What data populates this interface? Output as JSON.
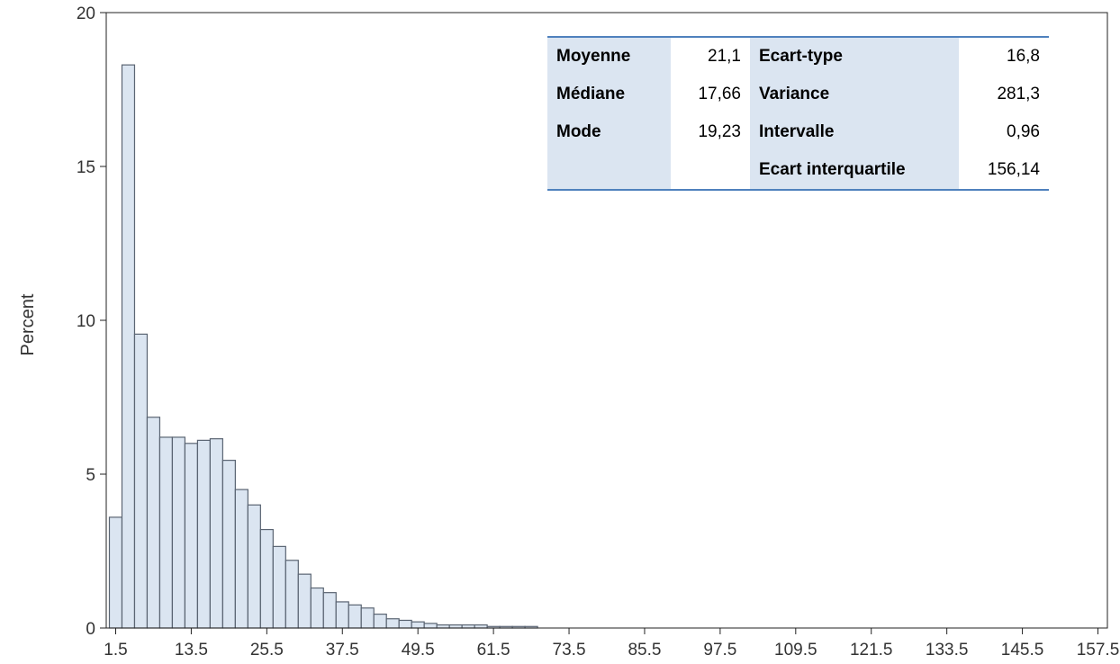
{
  "chart_data": {
    "type": "bar",
    "ylabel": "Percent",
    "ylim": [
      0,
      20
    ],
    "yticks": [
      "0",
      "5",
      "10",
      "15",
      "20"
    ],
    "xticks": [
      "1.5",
      "13.5",
      "25.5",
      "37.5",
      "49.5",
      "61.5",
      "73.5",
      "85.5",
      "97.5",
      "109.5",
      "121.5",
      "133.5",
      "145.5",
      "157.5"
    ],
    "xlim": [
      0,
      159
    ],
    "bin_width": 2,
    "categories": [
      1.5,
      3.5,
      5.5,
      7.5,
      9.5,
      11.5,
      13.5,
      15.5,
      17.5,
      19.5,
      21.5,
      23.5,
      25.5,
      27.5,
      29.5,
      31.5,
      33.5,
      35.5,
      37.5,
      39.5,
      41.5,
      43.5,
      45.5,
      47.5,
      49.5,
      51.5,
      53.5,
      55.5,
      57.5,
      59.5,
      61.5,
      63.5,
      65.5,
      67.5
    ],
    "values": [
      3.6,
      18.3,
      9.55,
      6.85,
      6.2,
      6.2,
      6.0,
      6.1,
      6.15,
      5.45,
      4.5,
      4.0,
      3.2,
      2.65,
      2.2,
      1.75,
      1.3,
      1.15,
      0.85,
      0.75,
      0.65,
      0.45,
      0.3,
      0.25,
      0.2,
      0.15,
      0.1,
      0.1,
      0.1,
      0.1,
      0.05,
      0.05,
      0.05,
      0.05
    ],
    "bar_color": "#dbe5f1",
    "bar_stroke": "#5a6472"
  },
  "stats_table": {
    "rows": [
      [
        "Moyenne",
        "21,1",
        "Ecart-type",
        "16,8"
      ],
      [
        "Médiane",
        "17,66",
        "Variance",
        "281,3"
      ],
      [
        "Mode",
        "19,23",
        "Intervalle",
        "0,96"
      ],
      [
        "",
        "",
        "Ecart interquartile",
        "156,14"
      ]
    ]
  }
}
